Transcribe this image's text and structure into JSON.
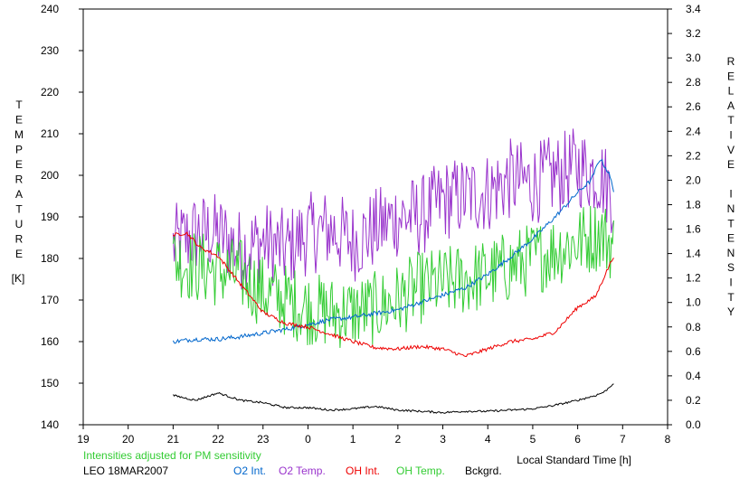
{
  "chart_data": {
    "type": "line",
    "title": "",
    "left_axis_label": "TEMPERATURE",
    "left_axis_unit": "[K]",
    "right_axis_label": "RELATIVE INTENSITY",
    "x_axis_label": "Local Standard Time [h]",
    "note": "Intensities adjusted for PM sensitivity",
    "station_label": "LEO 18MAR2007",
    "x_ticks": [
      "19",
      "20",
      "21",
      "22",
      "23",
      "0",
      "1",
      "2",
      "3",
      "4",
      "5",
      "6",
      "7",
      "8"
    ],
    "left_ticks": [
      "140",
      "150",
      "160",
      "170",
      "180",
      "190",
      "200",
      "210",
      "220",
      "230",
      "240"
    ],
    "right_ticks": [
      "0.0",
      "0.2",
      "0.4",
      "0.6",
      "0.8",
      "1.0",
      "1.2",
      "1.4",
      "1.6",
      "1.8",
      "2.0",
      "2.2",
      "2.4",
      "2.6",
      "2.8",
      "3.0",
      "3.2",
      "3.4"
    ],
    "xlim": [
      19,
      32
    ],
    "ylim_left": [
      140,
      240
    ],
    "ylim_right": [
      0,
      3.4
    ],
    "grid": false,
    "legend": [
      {
        "label": "O2 Int.",
        "color": "#0066cc"
      },
      {
        "label": "O2 Temp.",
        "color": "#9933cc"
      },
      {
        "label": "OH Int.",
        "color": "#ee0000"
      },
      {
        "label": "OH Temp.",
        "color": "#33cc33"
      },
      {
        "label": "Bckgrd.",
        "color": "#000000"
      }
    ],
    "series": [
      {
        "name": "O2 Temp.",
        "axis": "left",
        "color": "#9933cc",
        "noise": 10,
        "x": [
          21,
          21.5,
          22,
          22.5,
          23,
          23.5,
          24,
          24.5,
          25,
          25.5,
          26,
          26.5,
          27,
          27.5,
          28,
          28.5,
          29,
          29.5,
          30,
          30.5,
          30.8
        ],
        "y": [
          183,
          186,
          186,
          182,
          184,
          182,
          186,
          187,
          184,
          187,
          190,
          190,
          194,
          195,
          196,
          199,
          198,
          200,
          202,
          200,
          195
        ]
      },
      {
        "name": "OH Temp.",
        "axis": "left",
        "color": "#33cc33",
        "noise": 9,
        "x": [
          21,
          21.5,
          22,
          22.5,
          23,
          23.5,
          24,
          24.5,
          25,
          25.5,
          26,
          26.5,
          27,
          27.5,
          28,
          28.5,
          29,
          29.5,
          30,
          30.5,
          30.8
        ],
        "y": [
          180,
          178,
          177,
          176,
          172,
          170,
          168,
          167,
          167,
          168,
          170,
          173,
          174,
          175,
          176,
          178,
          180,
          182,
          184,
          186,
          183
        ]
      },
      {
        "name": "O2 Int.",
        "axis": "right",
        "color": "#0066cc",
        "noise": 0.018,
        "x": [
          21,
          21.5,
          22,
          22.5,
          23,
          23.5,
          24,
          24.5,
          25,
          25.5,
          26,
          26.5,
          27,
          27.5,
          28,
          28.5,
          29,
          29.5,
          30,
          30.3,
          30.5,
          30.7,
          30.8
        ],
        "y": [
          0.68,
          0.7,
          0.7,
          0.72,
          0.75,
          0.78,
          0.82,
          0.86,
          0.88,
          0.91,
          0.94,
          1.0,
          1.06,
          1.12,
          1.23,
          1.37,
          1.52,
          1.7,
          1.9,
          2.0,
          2.18,
          2.05,
          1.92
        ]
      },
      {
        "name": "OH Int.",
        "axis": "right",
        "color": "#ee0000",
        "noise": 0.015,
        "x": [
          21,
          21.3,
          21.6,
          22,
          22.5,
          23,
          23.5,
          24,
          24.5,
          25,
          25.5,
          26,
          26.5,
          27,
          27.5,
          28,
          28.5,
          29,
          29.5,
          30,
          30.4,
          30.6,
          30.8
        ],
        "y": [
          1.55,
          1.57,
          1.45,
          1.38,
          1.15,
          0.92,
          0.83,
          0.8,
          0.74,
          0.68,
          0.63,
          0.62,
          0.64,
          0.62,
          0.56,
          0.62,
          0.68,
          0.7,
          0.76,
          0.96,
          1.05,
          1.22,
          1.38
        ]
      },
      {
        "name": "Bckgrd.",
        "axis": "right",
        "color": "#000000",
        "noise": 0.008,
        "x": [
          21,
          21.5,
          22,
          22.5,
          23,
          23.5,
          24,
          24.5,
          25,
          25.5,
          26,
          26.5,
          27,
          27.5,
          28,
          28.5,
          29,
          29.5,
          30,
          30.4,
          30.6,
          30.8
        ],
        "y": [
          0.24,
          0.2,
          0.26,
          0.2,
          0.18,
          0.14,
          0.14,
          0.12,
          0.13,
          0.15,
          0.12,
          0.11,
          0.1,
          0.11,
          0.11,
          0.12,
          0.13,
          0.16,
          0.2,
          0.24,
          0.27,
          0.34
        ]
      }
    ]
  }
}
